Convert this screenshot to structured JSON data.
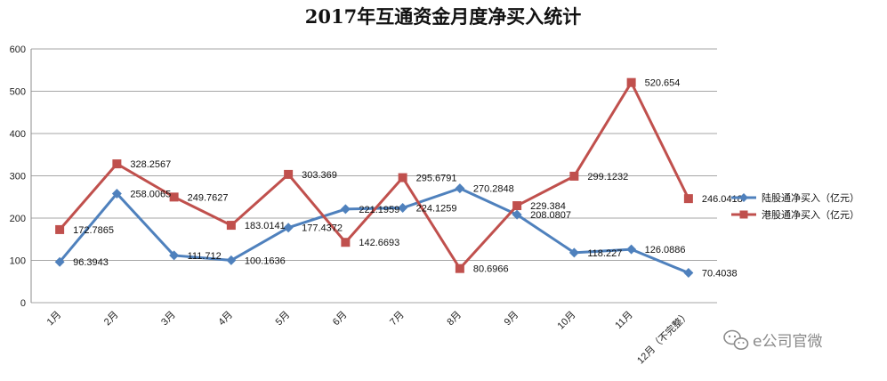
{
  "chart_data": {
    "type": "line",
    "title": "2017年互通资金月度净买入统计",
    "categories": [
      "1月",
      "2月",
      "3月",
      "4月",
      "5月",
      "6月",
      "7月",
      "8月",
      "9月",
      "10月",
      "11月",
      "12月（不完整）"
    ],
    "ylim": [
      0,
      600
    ],
    "yticks": [
      0,
      100,
      200,
      300,
      400,
      500,
      600
    ],
    "grid": true,
    "legend_position": "right",
    "series": [
      {
        "name": "陆股通净买入（亿元）",
        "color": "#4f81bd",
        "marker": "diamond",
        "values": [
          96.3943,
          258.0065,
          111.712,
          100.1636,
          177.4372,
          221.1959,
          224.1259,
          270.2848,
          208.0807,
          118.227,
          126.0886,
          70.4038
        ],
        "labels": [
          "96.3943",
          "258.0065",
          "111.712",
          "100.1636",
          "177.4372",
          "221.1959",
          "224.1259",
          "270.2848",
          "208.0807",
          "118.227",
          "126.0886",
          "70.4038"
        ]
      },
      {
        "name": "港股通净买入（亿元）",
        "color": "#c0504d",
        "marker": "square",
        "values": [
          172.7865,
          328.2567,
          249.7627,
          183.0141,
          303.369,
          142.6693,
          295.6791,
          80.6966,
          229.384,
          299.1232,
          520.654,
          246.0418
        ],
        "labels": [
          "172.7865",
          "328.2567",
          "249.7627",
          "183.0141",
          "303.369",
          "142.6693",
          "295.6791",
          "80.6966",
          "229.384",
          "299.1232",
          "520.654",
          "246.0418"
        ]
      }
    ]
  },
  "watermark": {
    "text": "e公司官微",
    "icon": "wechat-icon"
  }
}
